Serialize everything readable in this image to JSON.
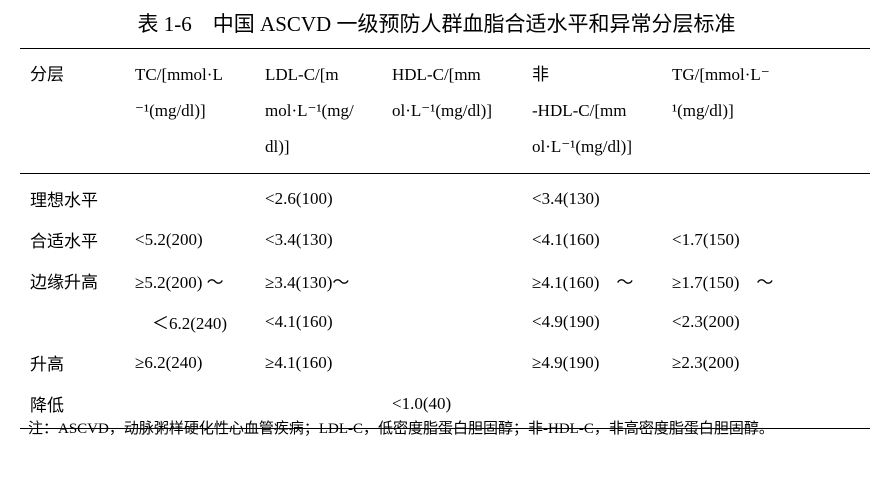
{
  "title": "表 1-6　中国 ASCVD 一级预防人群血脂合适水平和异常分层标准",
  "table": {
    "header": [
      [
        "分层"
      ],
      [
        "TC/[mmol·L",
        "⁻¹(mg/dl)]"
      ],
      [
        "LDL-C/[m",
        "mol·L⁻¹(mg/",
        "dl)]"
      ],
      [
        "HDL-C/[mm",
        "ol·L⁻¹(mg/dl)]"
      ],
      [
        "非",
        "-HDL-C/[mm",
        "ol·L⁻¹(mg/dl)]"
      ],
      [
        "TG/[mmol·L⁻",
        "¹(mg/dl)]"
      ]
    ],
    "rows": [
      [
        "理想水平",
        null,
        "<2.6(100)",
        null,
        "<3.4(130)",
        null
      ],
      [
        "合适水平",
        "<5.2(200)",
        "<3.4(130)",
        null,
        "<4.1(160)",
        "<1.7(150)"
      ],
      [
        "边缘升高",
        "≥5.2(200) ～",
        "≥3.4(130)～",
        null,
        "≥4.1(160)　～",
        "≥1.7(150)　～"
      ],
      [
        null,
        "　＜6.2(240)",
        "<4.1(160)",
        null,
        "<4.9(190)",
        "<2.3(200)"
      ],
      [
        "升高",
        "≥6.2(240)",
        "≥4.1(160)",
        null,
        "≥4.9(190)",
        "≥2.3(200)"
      ],
      [
        "降低",
        null,
        null,
        "<1.0(40)",
        null,
        null
      ]
    ]
  },
  "note": "注：ASCVD，动脉粥样硬化性心血管疾病；LDL-C，低密度脂蛋白胆固醇；非-HDL-C，非高密度脂蛋白胆固醇。"
}
